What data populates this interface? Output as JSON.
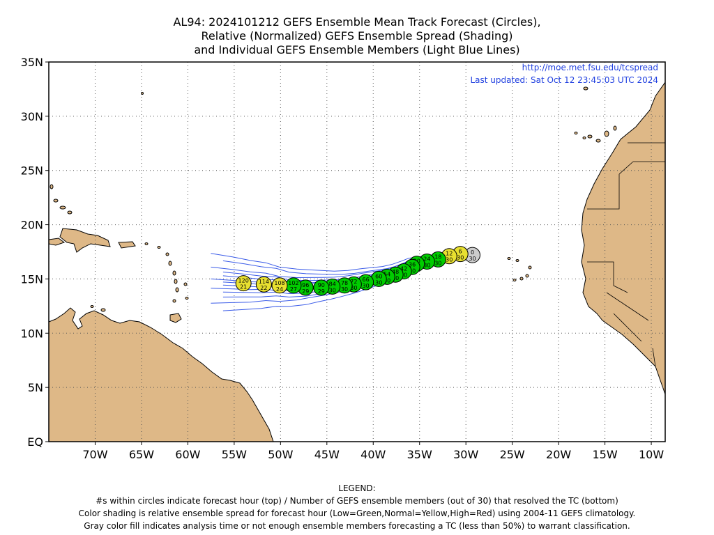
{
  "title": {
    "line1": "AL94: 2024101212 GEFS Ensemble Mean Track Forecast (Circles),",
    "line2": "Relative (Normalized) GEFS Ensemble Spread (Shading)",
    "line3": "and Individual GEFS Ensemble Members (Light Blue Lines)"
  },
  "credit": {
    "url": "http://moe.met.fsu.edu/tcspread",
    "updated": "Last updated: Sat Oct 12 23:45:03 UTC 2024"
  },
  "axes": {
    "lon_ticks": [
      "70W",
      "65W",
      "60W",
      "55W",
      "50W",
      "45W",
      "40W",
      "35W",
      "30W",
      "25W",
      "20W",
      "15W",
      "10W"
    ],
    "lat_ticks": [
      "EQ",
      "5N",
      "10N",
      "15N",
      "20N",
      "25N",
      "30N",
      "35N"
    ],
    "lon_range": [
      -75,
      -8.5
    ],
    "lat_range": [
      0,
      35
    ],
    "grid": true
  },
  "colors": {
    "land": "#deb887",
    "ocean": "#ffffff",
    "member_tracks": "#3a5be8",
    "low_spread": "#00cc00",
    "normal_spread": "#e8e030",
    "high_spread": "#e02020",
    "analysis": "#cccccc"
  },
  "forecast_points": [
    {
      "hour": "0",
      "members": "30",
      "lon": -29.3,
      "lat": 17.2,
      "spread": "gray"
    },
    {
      "hour": "6",
      "members": "30",
      "lon": -30.6,
      "lat": 17.3,
      "spread": "yellow"
    },
    {
      "hour": "12",
      "members": "30",
      "lon": -31.8,
      "lat": 17.1,
      "spread": "yellow"
    },
    {
      "hour": "18",
      "members": "30",
      "lon": -33.0,
      "lat": 16.8,
      "spread": "green"
    },
    {
      "hour": "24",
      "members": "30",
      "lon": -34.2,
      "lat": 16.6,
      "spread": "green"
    },
    {
      "hour": "30",
      "members": "30",
      "lon": -35.3,
      "lat": 16.4,
      "spread": "green"
    },
    {
      "hour": "36",
      "members": "30",
      "lon": -35.8,
      "lat": 16.1,
      "spread": "green"
    },
    {
      "hour": "42",
      "members": "30",
      "lon": -36.7,
      "lat": 15.7,
      "spread": "green"
    },
    {
      "hour": "48",
      "members": "30",
      "lon": -37.6,
      "lat": 15.4,
      "spread": "green"
    },
    {
      "hour": "54",
      "members": "30",
      "lon": -38.5,
      "lat": 15.2,
      "spread": "green"
    },
    {
      "hour": "60",
      "members": "30",
      "lon": -39.4,
      "lat": 15.0,
      "spread": "green"
    },
    {
      "hour": "66",
      "members": "30",
      "lon": -40.8,
      "lat": 14.7,
      "spread": "green"
    },
    {
      "hour": "72",
      "members": "30",
      "lon": -42.1,
      "lat": 14.5,
      "spread": "green"
    },
    {
      "hour": "78",
      "members": "30",
      "lon": -43.1,
      "lat": 14.4,
      "spread": "green"
    },
    {
      "hour": "84",
      "members": "30",
      "lon": -44.4,
      "lat": 14.3,
      "spread": "green"
    },
    {
      "hour": "90",
      "members": "29",
      "lon": -45.6,
      "lat": 14.2,
      "spread": "green"
    },
    {
      "hour": "96",
      "members": "29",
      "lon": -47.3,
      "lat": 14.2,
      "spread": "green"
    },
    {
      "hour": "102",
      "members": "27",
      "lon": -48.6,
      "lat": 14.4,
      "spread": "green"
    },
    {
      "hour": "108",
      "members": "24",
      "lon": -50.1,
      "lat": 14.4,
      "spread": "yellow"
    },
    {
      "hour": "114",
      "members": "22",
      "lon": -51.8,
      "lat": 14.5,
      "spread": "yellow"
    },
    {
      "hour": "120",
      "members": "21",
      "lon": -54.0,
      "lat": 14.6,
      "spread": "yellow"
    }
  ],
  "legend": {
    "heading": "LEGEND:",
    "line1": "#s within circles indicate forecast hour (top) / Number of GEFS ensemble members (out of 30) that resolved the TC (bottom)",
    "line2": "Color shading is relative ensemble spread for forecast hour (Low=Green,Normal=Yellow,High=Red) using 2004-11 GEFS climatology.",
    "line3": "Gray color fill indicates analysis time or not enough ensemble members forecasting a TC (less than 50%) to warrant classification."
  }
}
